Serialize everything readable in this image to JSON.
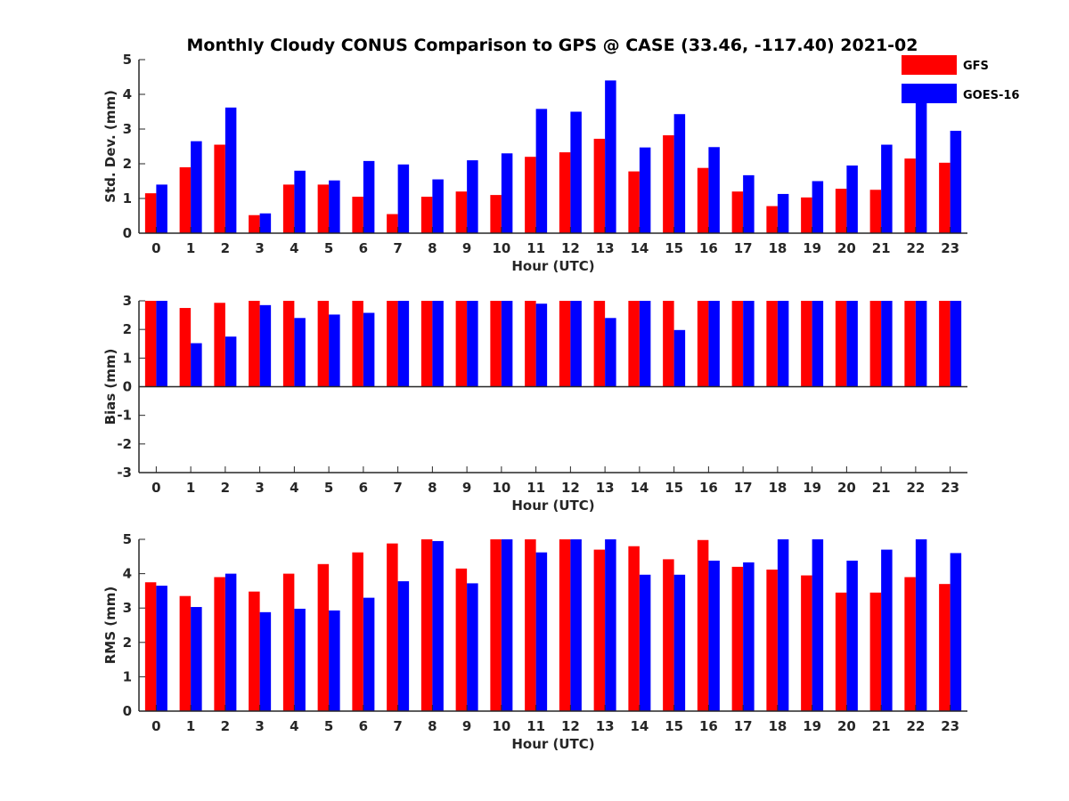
{
  "title": "Monthly Cloudy CONUS Comparison to GPS @ CASE (33.46, -117.40) 2021-02",
  "legend": [
    {
      "name": "GFS",
      "color": "#ff0000"
    },
    {
      "name": "GOES-16",
      "color": "#0000ff"
    }
  ],
  "chart_data": [
    {
      "type": "bar",
      "xlabel": "Hour (UTC)",
      "ylabel": "Std. Dev. (mm)",
      "ylim": [
        0,
        5
      ],
      "yticks": [
        0,
        1,
        2,
        3,
        4,
        5
      ],
      "categories": [
        "0",
        "1",
        "2",
        "3",
        "4",
        "5",
        "6",
        "7",
        "8",
        "9",
        "10",
        "11",
        "12",
        "13",
        "14",
        "15",
        "16",
        "17",
        "18",
        "19",
        "20",
        "21",
        "22",
        "23"
      ],
      "series": [
        {
          "name": "GFS",
          "color": "#ff0000",
          "values": [
            1.15,
            1.9,
            2.55,
            0.52,
            1.4,
            1.4,
            1.05,
            0.55,
            1.05,
            1.2,
            1.1,
            2.2,
            2.33,
            2.72,
            1.78,
            2.82,
            1.88,
            1.2,
            0.78,
            1.03,
            1.28,
            1.25,
            2.15,
            2.03
          ]
        },
        {
          "name": "GOES-16",
          "color": "#0000ff",
          "values": [
            1.4,
            2.65,
            3.62,
            0.57,
            1.8,
            1.52,
            2.08,
            1.98,
            1.55,
            2.1,
            2.3,
            3.58,
            3.5,
            4.4,
            2.47,
            3.43,
            2.48,
            1.67,
            1.13,
            1.5,
            1.95,
            2.55,
            4.05,
            2.95
          ]
        }
      ]
    },
    {
      "type": "bar",
      "xlabel": "Hour (UTC)",
      "ylabel": "Bias (mm)",
      "ylim": [
        -3,
        3
      ],
      "yticks": [
        -3,
        -2,
        -1,
        0,
        1,
        2,
        3
      ],
      "categories": [
        "0",
        "1",
        "2",
        "3",
        "4",
        "5",
        "6",
        "7",
        "8",
        "9",
        "10",
        "11",
        "12",
        "13",
        "14",
        "15",
        "16",
        "17",
        "18",
        "19",
        "20",
        "21",
        "22",
        "23"
      ],
      "series": [
        {
          "name": "GFS",
          "color": "#ff0000",
          "values": [
            3,
            2.75,
            2.93,
            3,
            3,
            3,
            3,
            3,
            3,
            3,
            3,
            3,
            3,
            3,
            3,
            3,
            3,
            3,
            3,
            3,
            3,
            3,
            3,
            3
          ]
        },
        {
          "name": "GOES-16",
          "color": "#0000ff",
          "values": [
            3,
            1.52,
            1.75,
            2.85,
            2.4,
            2.52,
            2.58,
            3,
            3,
            3,
            3,
            2.9,
            3,
            2.4,
            3,
            1.98,
            3,
            3,
            3,
            3,
            3,
            3,
            3,
            3
          ]
        }
      ]
    },
    {
      "type": "bar",
      "xlabel": "Hour (UTC)",
      "ylabel": "RMS (mm)",
      "ylim": [
        0,
        5
      ],
      "yticks": [
        0,
        1,
        2,
        3,
        4,
        5
      ],
      "categories": [
        "0",
        "1",
        "2",
        "3",
        "4",
        "5",
        "6",
        "7",
        "8",
        "9",
        "10",
        "11",
        "12",
        "13",
        "14",
        "15",
        "16",
        "17",
        "18",
        "19",
        "20",
        "21",
        "22",
        "23"
      ],
      "series": [
        {
          "name": "GFS",
          "color": "#ff0000",
          "values": [
            3.75,
            3.35,
            3.9,
            3.48,
            4.0,
            4.28,
            4.62,
            4.88,
            5.0,
            4.15,
            5.0,
            5.0,
            5.0,
            4.7,
            4.8,
            4.42,
            4.98,
            4.2,
            4.12,
            3.95,
            3.45,
            3.45,
            3.9,
            3.7
          ]
        },
        {
          "name": "GOES-16",
          "color": "#0000ff",
          "values": [
            3.65,
            3.03,
            4.0,
            2.88,
            2.98,
            2.93,
            3.3,
            3.78,
            4.95,
            3.72,
            5.0,
            4.62,
            5.0,
            5.0,
            3.97,
            3.97,
            4.38,
            4.33,
            5.0,
            5.0,
            4.38,
            4.7,
            5.0,
            4.6
          ]
        }
      ]
    }
  ]
}
